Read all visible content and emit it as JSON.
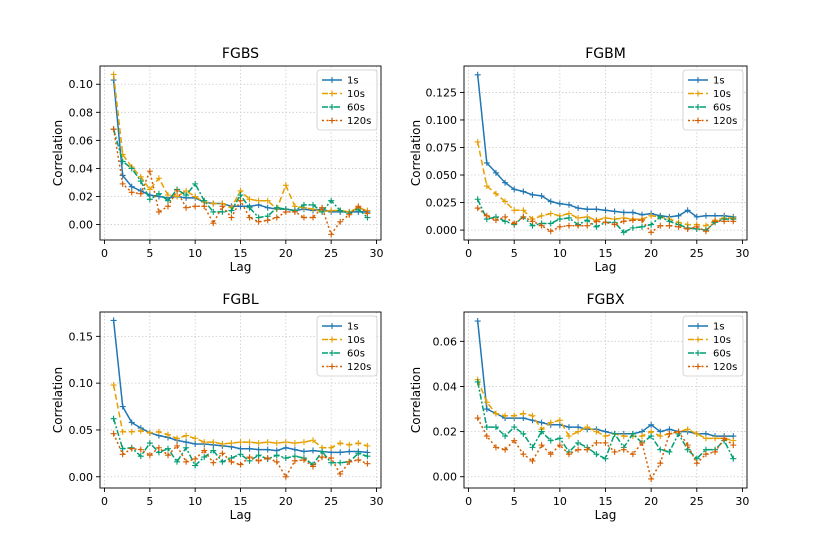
{
  "figure": {
    "xlabel": "Lag",
    "ylabel": "Correlation"
  },
  "legend": [
    "1s",
    "10s",
    "60s",
    "120s"
  ],
  "colors": {
    "1s": "#1f77b4",
    "10s": "#e69f00",
    "60s": "#009e73",
    "120s": "#d55e00"
  },
  "chart_data": [
    {
      "type": "line",
      "title": "FGBS",
      "xlabel": "Lag",
      "ylabel": "Correlation",
      "xlim": [
        -0.5,
        30.5
      ],
      "ylim": [
        -0.011,
        0.113
      ],
      "xticks": [
        0,
        5,
        10,
        15,
        20,
        25,
        30
      ],
      "yticks": [
        0.0,
        0.02,
        0.04,
        0.06,
        0.08,
        0.1
      ],
      "ytick_labels": [
        "0.00",
        "0.02",
        "0.04",
        "0.06",
        "0.08",
        "0.10"
      ],
      "legend_position": "top-right",
      "grid": true,
      "x": [
        1,
        2,
        3,
        4,
        5,
        6,
        7,
        8,
        9,
        10,
        11,
        12,
        13,
        14,
        15,
        16,
        17,
        18,
        19,
        20,
        21,
        22,
        23,
        24,
        25,
        26,
        27,
        28,
        29
      ],
      "series": [
        {
          "name": "1s",
          "values": [
            0.103,
            0.035,
            0.027,
            0.024,
            0.021,
            0.02,
            0.019,
            0.02,
            0.019,
            0.019,
            0.016,
            0.015,
            0.015,
            0.013,
            0.013,
            0.013,
            0.014,
            0.012,
            0.011,
            0.011,
            0.01,
            0.011,
            0.01,
            0.011,
            0.009,
            0.009,
            0.009,
            0.009,
            0.009
          ]
        },
        {
          "name": "10s",
          "values": [
            0.107,
            0.05,
            0.041,
            0.034,
            0.025,
            0.033,
            0.021,
            0.02,
            0.024,
            0.02,
            0.016,
            0.015,
            0.015,
            0.012,
            0.024,
            0.018,
            0.017,
            0.017,
            0.011,
            0.028,
            0.013,
            0.012,
            0.011,
            0.009,
            0.01,
            0.01,
            0.009,
            0.012,
            0.01
          ]
        },
        {
          "name": "60s",
          "values": [
            0.068,
            0.045,
            0.04,
            0.031,
            0.018,
            0.022,
            0.017,
            0.025,
            0.021,
            0.029,
            0.017,
            0.009,
            0.009,
            0.01,
            0.021,
            0.012,
            0.005,
            0.006,
            0.012,
            0.011,
            0.01,
            0.014,
            0.014,
            0.009,
            0.017,
            0.01,
            0.008,
            0.011,
            0.005
          ]
        },
        {
          "name": "120s",
          "values": [
            0.068,
            0.029,
            0.023,
            0.022,
            0.038,
            0.009,
            0.013,
            0.024,
            0.012,
            0.013,
            0.013,
            0.001,
            0.013,
            0.005,
            0.017,
            0.005,
            0.002,
            0.003,
            0.005,
            0.009,
            0.009,
            0.005,
            0.005,
            0.012,
            -0.007,
            0.002,
            0.007,
            0.013,
            0.008
          ]
        }
      ]
    },
    {
      "type": "line",
      "title": "FGBM",
      "xlabel": "Lag",
      "ylabel": "Correlation",
      "xlim": [
        -0.5,
        30.5
      ],
      "ylim": [
        -0.009,
        0.149
      ],
      "xticks": [
        0,
        5,
        10,
        15,
        20,
        25,
        30
      ],
      "yticks": [
        0.0,
        0.025,
        0.05,
        0.075,
        0.1,
        0.125
      ],
      "ytick_labels": [
        "0.000",
        "0.025",
        "0.050",
        "0.075",
        "0.100",
        "0.125"
      ],
      "legend_position": "top-right",
      "grid": true,
      "x": [
        1,
        2,
        3,
        4,
        5,
        6,
        7,
        8,
        9,
        10,
        11,
        12,
        13,
        14,
        15,
        16,
        17,
        18,
        19,
        20,
        21,
        22,
        23,
        24,
        25,
        26,
        27,
        28,
        29
      ],
      "series": [
        {
          "name": "1s",
          "values": [
            0.141,
            0.061,
            0.052,
            0.043,
            0.037,
            0.035,
            0.032,
            0.031,
            0.026,
            0.024,
            0.023,
            0.02,
            0.019,
            0.019,
            0.018,
            0.017,
            0.016,
            0.016,
            0.014,
            0.015,
            0.013,
            0.012,
            0.013,
            0.018,
            0.012,
            0.013,
            0.013,
            0.013,
            0.012
          ]
        },
        {
          "name": "10s",
          "values": [
            0.08,
            0.04,
            0.033,
            0.026,
            0.018,
            0.018,
            0.01,
            0.013,
            0.015,
            0.013,
            0.015,
            0.011,
            0.012,
            0.009,
            0.011,
            0.01,
            0.011,
            0.01,
            0.01,
            0.013,
            0.012,
            0.01,
            0.007,
            0.005,
            0.005,
            0.004,
            0.009,
            0.011,
            0.011
          ]
        },
        {
          "name": "60s",
          "values": [
            0.028,
            0.01,
            0.012,
            0.008,
            0.005,
            0.012,
            0.004,
            0.006,
            0.006,
            0.01,
            0.011,
            0.005,
            0.009,
            0.003,
            0.007,
            0.007,
            -0.002,
            0.002,
            0.003,
            0.005,
            0.012,
            0.008,
            0.005,
            0.002,
            0.001,
            0.0,
            0.007,
            0.01,
            0.01
          ]
        },
        {
          "name": "120s",
          "values": [
            0.02,
            0.013,
            0.009,
            0.012,
            0.006,
            0.012,
            0.008,
            0.004,
            -0.001,
            0.003,
            0.004,
            0.004,
            0.004,
            0.008,
            0.007,
            0.005,
            0.008,
            0.009,
            0.009,
            -0.002,
            0.004,
            0.004,
            0.003,
            0.001,
            0.003,
            -0.001,
            0.008,
            0.008,
            0.008
          ]
        }
      ]
    },
    {
      "type": "line",
      "title": "FGBL",
      "xlabel": "Lag",
      "ylabel": "Correlation",
      "xlim": [
        -0.5,
        30.5
      ],
      "ylim": [
        -0.012,
        0.176
      ],
      "xticks": [
        0,
        5,
        10,
        15,
        20,
        25,
        30
      ],
      "yticks": [
        0.0,
        0.05,
        0.1,
        0.15
      ],
      "ytick_labels": [
        "0.00",
        "0.05",
        "0.10",
        "0.15"
      ],
      "legend_position": "top-right",
      "grid": true,
      "x": [
        1,
        2,
        3,
        4,
        5,
        6,
        7,
        8,
        9,
        10,
        11,
        12,
        13,
        14,
        15,
        16,
        17,
        18,
        19,
        20,
        21,
        22,
        23,
        24,
        25,
        26,
        27,
        28,
        29
      ],
      "series": [
        {
          "name": "1s",
          "values": [
            0.167,
            0.075,
            0.058,
            0.052,
            0.047,
            0.044,
            0.042,
            0.039,
            0.037,
            0.035,
            0.035,
            0.034,
            0.033,
            0.032,
            0.03,
            0.03,
            0.029,
            0.029,
            0.028,
            0.031,
            0.029,
            0.027,
            0.028,
            0.027,
            0.026,
            0.026,
            0.027,
            0.027,
            0.026
          ]
        },
        {
          "name": "10s",
          "values": [
            0.098,
            0.048,
            0.048,
            0.049,
            0.047,
            0.048,
            0.045,
            0.041,
            0.044,
            0.041,
            0.037,
            0.037,
            0.035,
            0.036,
            0.037,
            0.037,
            0.036,
            0.037,
            0.036,
            0.037,
            0.036,
            0.037,
            0.039,
            0.031,
            0.031,
            0.036,
            0.034,
            0.036,
            0.033
          ]
        },
        {
          "name": "60s",
          "values": [
            0.062,
            0.03,
            0.031,
            0.022,
            0.036,
            0.026,
            0.03,
            0.016,
            0.031,
            0.012,
            0.021,
            0.028,
            0.016,
            0.02,
            0.024,
            0.017,
            0.023,
            0.019,
            0.023,
            0.02,
            0.022,
            0.02,
            0.013,
            0.027,
            0.015,
            0.015,
            0.016,
            0.025,
            0.022
          ]
        },
        {
          "name": "120s",
          "values": [
            0.046,
            0.024,
            0.03,
            0.029,
            0.023,
            0.031,
            0.023,
            0.033,
            0.016,
            0.019,
            0.028,
            0.015,
            0.025,
            0.016,
            0.013,
            0.021,
            0.017,
            0.02,
            0.016,
            0.0,
            0.017,
            0.018,
            0.011,
            0.021,
            0.02,
            0.003,
            0.016,
            0.018,
            0.014
          ]
        }
      ]
    },
    {
      "type": "line",
      "title": "FGBX",
      "xlabel": "Lag",
      "ylabel": "Correlation",
      "xlim": [
        -0.5,
        30.5
      ],
      "ylim": [
        -0.005,
        0.073
      ],
      "xticks": [
        0,
        5,
        10,
        15,
        20,
        25,
        30
      ],
      "yticks": [
        0.0,
        0.02,
        0.04,
        0.06
      ],
      "ytick_labels": [
        "0.00",
        "0.02",
        "0.04",
        "0.06"
      ],
      "legend_position": "top-right",
      "grid": true,
      "x": [
        1,
        2,
        3,
        4,
        5,
        6,
        7,
        8,
        9,
        10,
        11,
        12,
        13,
        14,
        15,
        16,
        17,
        18,
        19,
        20,
        21,
        22,
        23,
        24,
        25,
        26,
        27,
        28,
        29
      ],
      "series": [
        {
          "name": "1s",
          "values": [
            0.069,
            0.03,
            0.028,
            0.026,
            0.026,
            0.026,
            0.025,
            0.024,
            0.023,
            0.023,
            0.022,
            0.022,
            0.021,
            0.021,
            0.02,
            0.019,
            0.019,
            0.019,
            0.02,
            0.023,
            0.02,
            0.021,
            0.02,
            0.02,
            0.019,
            0.019,
            0.018,
            0.018,
            0.018
          ]
        },
        {
          "name": "10s",
          "values": [
            0.043,
            0.033,
            0.028,
            0.027,
            0.027,
            0.028,
            0.027,
            0.021,
            0.024,
            0.025,
            0.018,
            0.02,
            0.022,
            0.02,
            0.018,
            0.019,
            0.018,
            0.018,
            0.018,
            0.02,
            0.018,
            0.019,
            0.02,
            0.021,
            0.019,
            0.017,
            0.017,
            0.017,
            0.016
          ]
        },
        {
          "name": "60s",
          "values": [
            0.042,
            0.022,
            0.022,
            0.018,
            0.022,
            0.019,
            0.013,
            0.02,
            0.016,
            0.017,
            0.011,
            0.015,
            0.013,
            0.01,
            0.008,
            0.019,
            0.013,
            0.019,
            0.015,
            0.018,
            0.012,
            0.011,
            0.019,
            0.012,
            0.008,
            0.012,
            0.012,
            0.016,
            0.008
          ]
        },
        {
          "name": "120s",
          "values": [
            0.026,
            0.018,
            0.013,
            0.012,
            0.016,
            0.01,
            0.007,
            0.014,
            0.01,
            0.014,
            0.01,
            0.012,
            0.012,
            0.015,
            0.015,
            0.011,
            0.012,
            0.01,
            0.015,
            -0.001,
            0.006,
            0.019,
            0.02,
            0.014,
            0.006,
            0.01,
            0.011,
            0.017,
            0.014
          ]
        }
      ]
    }
  ]
}
